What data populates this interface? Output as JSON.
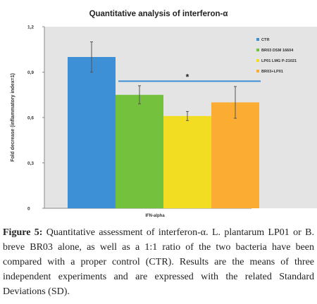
{
  "chart_data": {
    "type": "bar",
    "title": "Quantitative analysis of interferon-α",
    "ylabel": "Fold decrease (inflammatory index=1)",
    "categories": [
      "IFN-alpha"
    ],
    "ylim": [
      0,
      1.2
    ],
    "yticks": [
      "0",
      "0,3",
      "0,6",
      "0,9",
      "1,2"
    ],
    "ytick_values": [
      0,
      0.3,
      0.6,
      0.9,
      1.2
    ],
    "series": [
      {
        "name": "CTR",
        "values": [
          1.0
        ],
        "error": [
          0.1
        ],
        "color": "#3d8fd6"
      },
      {
        "name": "BR03 DSM 16604",
        "values": [
          0.75
        ],
        "error": [
          0.06
        ],
        "color": "#73c13c"
      },
      {
        "name": "LP01 LMG P-21021",
        "values": [
          0.61
        ],
        "error": [
          0.03
        ],
        "color": "#f2dd23"
      },
      {
        "name": "BR03+LP01",
        "values": [
          0.7
        ],
        "error": [
          0.105
        ],
        "color": "#fbac33"
      }
    ],
    "significance_marker": "*",
    "significance_value": 0.84,
    "grid": false,
    "legend": "right"
  },
  "caption": {
    "figure_label": "Figure 5:",
    "text": "Quantitative assessment of interferon-α. L. plantarum LP01 or B. breve BR03 alone, as well as a 1:1 ratio of the two bacteria have been compared with a proper control (CTR). Results are the means of three independent experiments and are expressed with the related Standard Deviations (SD)."
  }
}
